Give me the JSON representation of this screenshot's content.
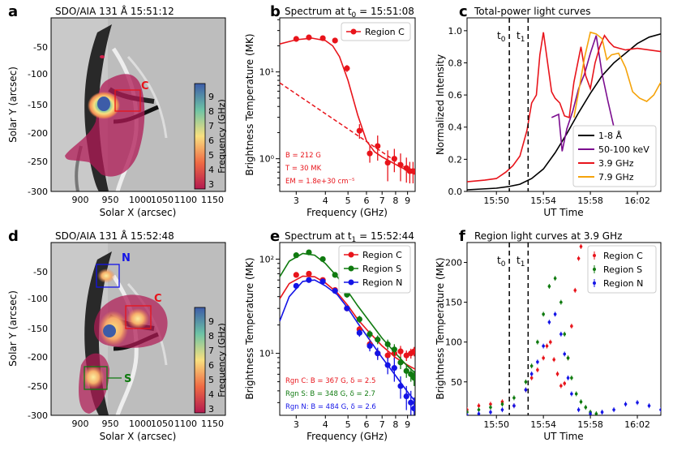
{
  "panels": {
    "a": {
      "letter": "a",
      "title": "SDO/AIA 131 Å 15:51:12",
      "xlabel": "Solar X (arcsec)",
      "ylabel": "Solar Y (arcsec)",
      "xticks": [
        "900",
        "950",
        "1000",
        "1050",
        "1100",
        "1150"
      ],
      "yticks": [
        "-50",
        "-100",
        "-150",
        "-200",
        "-250",
        "-300"
      ],
      "region_label": "C",
      "colorbar_label": "Frequency (GHz)",
      "colorbar_ticks": [
        "9",
        "8",
        "7",
        "6",
        "5",
        "4",
        "3"
      ]
    },
    "b": {
      "letter": "b",
      "title": "Spectrum at t",
      "title_sub": "0",
      "title_tail": " = 15:51:08",
      "xlabel": "Frequency (GHz)",
      "ylabel": "Brightness Temperature (MK)",
      "xticks": [
        "3",
        "4",
        "5",
        "6",
        "7",
        "8",
        "9"
      ],
      "yticks": [
        "10¹",
        "10⁰"
      ],
      "legend": "Region C",
      "fit_params": [
        "B = 212 G",
        "T = 30 MK",
        "EM = 1.8e+30 cm⁻⁵"
      ]
    },
    "c": {
      "letter": "c",
      "title": "Total-power light curves",
      "xlabel": "UT Time",
      "ylabel": "Normalized Intensity",
      "xticks": [
        "15:50",
        "15:54",
        "15:58",
        "16:02"
      ],
      "yticks": [
        "1.0",
        "0.8",
        "0.6",
        "0.4",
        "0.2",
        "0.0"
      ],
      "marker_t0": "t",
      "marker_t0_sub": "0",
      "marker_t1": "t",
      "marker_t1_sub": "1",
      "legend": [
        "1-8 Å",
        "50-100 keV",
        "3.9 GHz",
        "7.9 GHz"
      ]
    },
    "d": {
      "letter": "d",
      "title": "SDO/AIA 131 Å 15:52:48",
      "xlabel": "Solar X (arcsec)",
      "ylabel": "Solar Y (arcsec)",
      "xticks": [
        "900",
        "950",
        "1000",
        "1050",
        "1100",
        "1150"
      ],
      "yticks": [
        "-50",
        "-100",
        "-150",
        "-200",
        "-250",
        "-300"
      ],
      "label_n": "N",
      "label_c": "C",
      "label_s": "S",
      "colorbar_label": "Frequency (GHz)",
      "colorbar_ticks": [
        "9",
        "8",
        "7",
        "6",
        "5",
        "4",
        "3"
      ]
    },
    "e": {
      "letter": "e",
      "title": "Spectrum at t",
      "title_sub": "1",
      "title_tail": " = 15:52:44",
      "xlabel": "Frequency (GHz)",
      "ylabel": "Brightness Temperature (MK)",
      "xticks": [
        "3",
        "4",
        "5",
        "6",
        "7",
        "8",
        "9"
      ],
      "yticks": [
        "10²",
        "10¹"
      ],
      "legend": [
        "Region C",
        "Region S",
        "Region N"
      ],
      "fit_params": [
        "Rgn C: B = 367 G, δ = 2.5",
        "Rgn S: B = 348 G, δ = 2.7",
        "Rgn N: B = 484 G, δ = 2.6"
      ]
    },
    "f": {
      "letter": "f",
      "title": "Region light curves at 3.9 GHz",
      "xlabel": "UT Time",
      "ylabel": "Brightness Temperature (MK)",
      "xticks": [
        "15:50",
        "15:54",
        "15:58",
        "16:02"
      ],
      "yticks": [
        "200",
        "150",
        "100",
        "50"
      ],
      "marker_t0": "t",
      "marker_t0_sub": "0",
      "marker_t1": "t",
      "marker_t1_sub": "1",
      "legend": [
        "Region C",
        "Region S",
        "Region N"
      ]
    }
  },
  "colors": {
    "red": "#e8141b",
    "green": "#0f7a0f",
    "blue": "#1414e6",
    "purple": "#7b0d8f",
    "orange": "#f5a30a",
    "black": "#000000"
  },
  "chart_data": [
    {
      "panel": "b",
      "type": "scatter",
      "xscale": "log",
      "yscale": "log",
      "xlim": [
        2.55,
        9.7
      ],
      "ylim": [
        0.42,
        42
      ],
      "series": [
        {
          "name": "Region C",
          "x": [
            3.0,
            3.4,
            3.9,
            4.4,
            4.95,
            5.6,
            6.2,
            6.7,
            7.4,
            7.9,
            8.4,
            8.9,
            9.2,
            9.5
          ],
          "y": [
            24,
            25,
            24.5,
            23,
            11,
            2.1,
            1.15,
            1.4,
            0.9,
            1.0,
            0.85,
            0.78,
            0.72,
            0.72
          ],
          "err": [
            1.5,
            1.5,
            1.5,
            1.5,
            1.0,
            0.4,
            0.25,
            0.45,
            0.35,
            0.3,
            0.3,
            0.25,
            0.2,
            0.2
          ]
        }
      ],
      "fit_total": {
        "x": [
          2.55,
          3.0,
          3.5,
          4.0,
          4.3,
          4.6,
          5.0,
          5.5,
          6.0,
          6.5,
          7.0,
          8.0,
          9.0,
          9.7
        ],
        "y": [
          21,
          23.5,
          24.5,
          23,
          20,
          15,
          8,
          3.2,
          1.6,
          1.2,
          1.05,
          0.86,
          0.73,
          0.66
        ]
      },
      "fit_thermal": {
        "x": [
          2.55,
          9.7
        ],
        "y": [
          7.5,
          0.66
        ]
      }
    },
    {
      "panel": "e",
      "type": "scatter",
      "xscale": "log",
      "yscale": "log",
      "xlim": [
        2.55,
        9.7
      ],
      "ylim": [
        2.2,
        150
      ],
      "series": [
        {
          "name": "Region C",
          "x": [
            3.0,
            3.4,
            3.9,
            4.4,
            4.95,
            5.6,
            6.2,
            6.7,
            7.4,
            7.9,
            8.4,
            8.9,
            9.3,
            9.6
          ],
          "y": [
            68,
            70,
            60,
            47,
            30,
            18,
            12.5,
            10,
            9.5,
            10,
            10.5,
            9.5,
            10,
            10.5
          ],
          "err": [
            4,
            4,
            4,
            3,
            2,
            1.5,
            1.5,
            1.2,
            1.2,
            1.5,
            1.5,
            1.2,
            1.2,
            1.2
          ]
        },
        {
          "name": "Region S",
          "x": [
            3.0,
            3.4,
            3.9,
            4.4,
            4.95,
            5.6,
            6.2,
            6.7,
            7.4,
            7.9,
            8.4,
            8.9,
            9.3,
            9.6
          ],
          "y": [
            110,
            118,
            100,
            68,
            42,
            23,
            16,
            14,
            12.5,
            11,
            8,
            6.5,
            6,
            5.5
          ],
          "err": [
            6,
            6,
            6,
            4,
            3,
            2,
            1.5,
            1.5,
            1.5,
            1.5,
            1.2,
            1,
            1,
            1
          ]
        },
        {
          "name": "Region N",
          "x": [
            3.0,
            3.4,
            3.9,
            4.4,
            4.95,
            5.6,
            6.2,
            6.7,
            7.4,
            7.9,
            8.4,
            8.9,
            9.3,
            9.6
          ],
          "y": [
            52,
            60,
            58,
            46,
            30,
            16.5,
            12,
            10,
            7.5,
            7,
            4.5,
            3.5,
            3,
            2.6
          ],
          "err": [
            3,
            3,
            3,
            3,
            2,
            1.5,
            1.5,
            1.5,
            1.5,
            2,
            1.2,
            1,
            1,
            0.8
          ]
        }
      ],
      "fits": [
        {
          "name": "Region C",
          "x": [
            2.55,
            2.8,
            3.2,
            3.6,
            4.0,
            4.5,
            5.0,
            5.5,
            6.0,
            7.0,
            8.0,
            9.0,
            9.7
          ],
          "y": [
            38,
            55,
            66,
            65,
            56,
            44,
            32,
            23,
            18,
            12,
            9,
            7.5,
            6.8
          ]
        },
        {
          "name": "Region S",
          "x": [
            2.55,
            2.8,
            3.2,
            3.6,
            4.0,
            4.5,
            5.0,
            5.5,
            6.0,
            7.0,
            8.0,
            9.0,
            9.7
          ],
          "y": [
            65,
            95,
            115,
            110,
            90,
            65,
            45,
            32,
            24,
            14.5,
            10,
            7.3,
            6.2
          ]
        },
        {
          "name": "Region N",
          "x": [
            2.55,
            2.8,
            3.2,
            3.6,
            4.0,
            4.5,
            5.0,
            5.5,
            6.0,
            7.0,
            8.0,
            9.0,
            9.7
          ],
          "y": [
            22,
            40,
            58,
            60,
            52,
            42,
            30,
            21,
            15.5,
            9,
            5.8,
            3.9,
            3.1
          ]
        }
      ]
    },
    {
      "panel": "c",
      "type": "line",
      "xunit": "minutes after 15:50",
      "xlim": [
        -2.5,
        14
      ],
      "ylim": [
        0,
        1.08
      ],
      "t0": 1.1,
      "t1": 2.7,
      "series": [
        {
          "name": "1-8 Å",
          "x": [
            -2.5,
            0,
            1,
            2,
            3,
            4,
            5,
            6,
            7,
            8,
            9,
            10,
            11,
            12,
            13,
            14
          ],
          "y": [
            0.01,
            0.02,
            0.03,
            0.045,
            0.08,
            0.14,
            0.24,
            0.36,
            0.49,
            0.61,
            0.72,
            0.8,
            0.86,
            0.92,
            0.96,
            0.98
          ]
        },
        {
          "name": "50-100 keV",
          "x": [
            4.7,
            5.3,
            5.6,
            6.0,
            6.5,
            7.0,
            7.5,
            8.0,
            8.5,
            9.0,
            9.5,
            10.0
          ],
          "y": [
            0.46,
            0.48,
            0.25,
            0.39,
            0.5,
            0.64,
            0.73,
            0.86,
            0.97,
            0.73,
            0.56,
            0.4
          ]
        },
        {
          "name": "3.9 GHz",
          "x": [
            -2.5,
            -1,
            0,
            0.8,
            1.4,
            2.0,
            2.6,
            3.0,
            3.4,
            3.7,
            4.0,
            4.4,
            4.7,
            5.0,
            5.4,
            5.8,
            6.2,
            6.6,
            7.2,
            7.6,
            8.0,
            8.4,
            8.8,
            9.2,
            9.6,
            10.0,
            11.0,
            12.0,
            13.0,
            14.0
          ],
          "y": [
            0.06,
            0.07,
            0.08,
            0.12,
            0.16,
            0.22,
            0.38,
            0.55,
            0.6,
            0.85,
            0.99,
            0.78,
            0.62,
            0.58,
            0.55,
            0.47,
            0.46,
            0.68,
            0.9,
            0.72,
            0.64,
            0.8,
            0.9,
            0.97,
            0.93,
            0.9,
            0.88,
            0.89,
            0.88,
            0.87
          ]
        },
        {
          "name": "7.9 GHz",
          "x": [
            6.6,
            7.0,
            7.5,
            8.0,
            8.5,
            9.0,
            9.4,
            9.8,
            10.4,
            11.0,
            11.6,
            12.2,
            12.8,
            13.4,
            14.0
          ],
          "y": [
            0.46,
            0.62,
            0.83,
            0.99,
            0.98,
            0.95,
            0.82,
            0.85,
            0.86,
            0.77,
            0.62,
            0.58,
            0.56,
            0.6,
            0.68
          ]
        }
      ]
    },
    {
      "panel": "f",
      "type": "scatter",
      "xunit": "minutes after 15:50",
      "xlim": [
        -2.5,
        14
      ],
      "ylim": [
        8,
        225
      ],
      "t0": 1.1,
      "t1": 2.7,
      "series": [
        {
          "name": "Region C",
          "x": [
            -2.5,
            -1.5,
            -0.5,
            0.5,
            1.5,
            2.5,
            3.0,
            3.5,
            4.0,
            4.3,
            4.6,
            4.9,
            5.2,
            5.5,
            5.8,
            6.1,
            6.4,
            6.7,
            7.0,
            7.2
          ],
          "y": [
            15,
            20,
            22,
            25,
            20,
            40,
            55,
            65,
            80,
            95,
            100,
            78,
            60,
            45,
            48,
            80,
            120,
            165,
            205,
            220
          ]
        },
        {
          "name": "Region S",
          "x": [
            -2.5,
            -1.5,
            -0.5,
            0.5,
            1.5,
            2.5,
            3.0,
            3.5,
            4.0,
            4.5,
            5.0,
            5.5,
            5.8,
            6.1,
            6.4,
            6.8,
            7.2,
            7.6,
            8.0,
            8.5
          ],
          "y": [
            12,
            15,
            18,
            22,
            30,
            50,
            70,
            100,
            135,
            170,
            180,
            150,
            110,
            80,
            55,
            35,
            25,
            18,
            12,
            10
          ]
        },
        {
          "name": "Region N",
          "x": [
            -2.5,
            -1.5,
            -0.5,
            0.5,
            1.5,
            2.5,
            3.0,
            3.5,
            4.0,
            4.5,
            5.0,
            5.5,
            5.8,
            6.1,
            6.4,
            7.0,
            8.0,
            9.0,
            10.0,
            11.0,
            12.0,
            13.0,
            14.0
          ],
          "y": [
            8,
            10,
            12,
            15,
            20,
            40,
            60,
            75,
            95,
            125,
            135,
            110,
            85,
            55,
            35,
            15,
            10,
            12,
            15,
            22,
            24,
            20,
            15
          ]
        }
      ]
    }
  ]
}
